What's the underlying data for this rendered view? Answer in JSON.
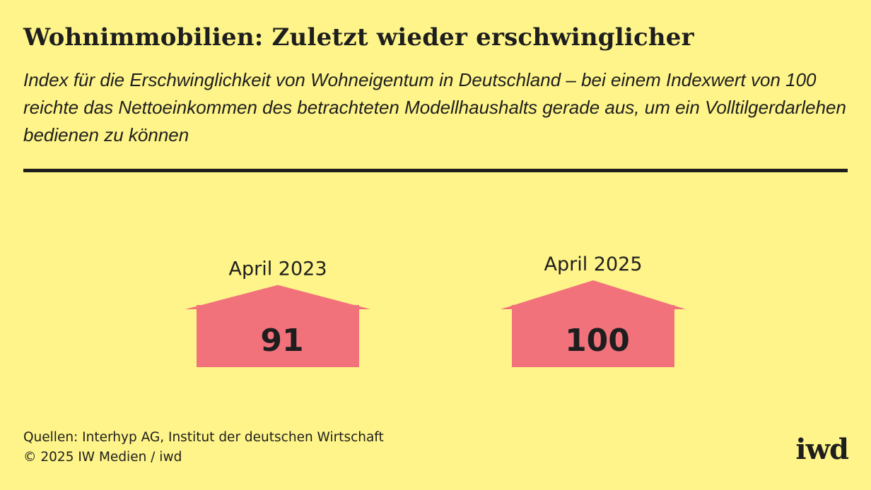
{
  "header": {
    "title": "Wohnimmobilien: Zuletzt wieder erschwinglicher",
    "subtitle": "Index für die Erschwinglichkeit von Wohneigentum in Deutschland – bei einem Indexwert von 100 reichte das Nettoeinkommen des betrachteten Modellhaushalts gerade aus, um ein Volltilgerdarlehen bedienen zu können"
  },
  "chart_data": {
    "type": "pictogram",
    "title": "Wohnimmobilien: Zuletzt wieder erschwinglicher",
    "categories": [
      "April 2023",
      "April 2025"
    ],
    "values": [
      91,
      100
    ],
    "value_labels": [
      "91",
      "100"
    ],
    "icon": "house-icon",
    "colors": {
      "house": "#f2727c",
      "background": "#fef489",
      "text": "#1e1e1e"
    }
  },
  "footer": {
    "sources": "Quellen: Interhyp AG, Institut der deutschen Wirtschaft",
    "copyright": "© 2025 IW Medien / iwd",
    "logo": "iwd"
  }
}
